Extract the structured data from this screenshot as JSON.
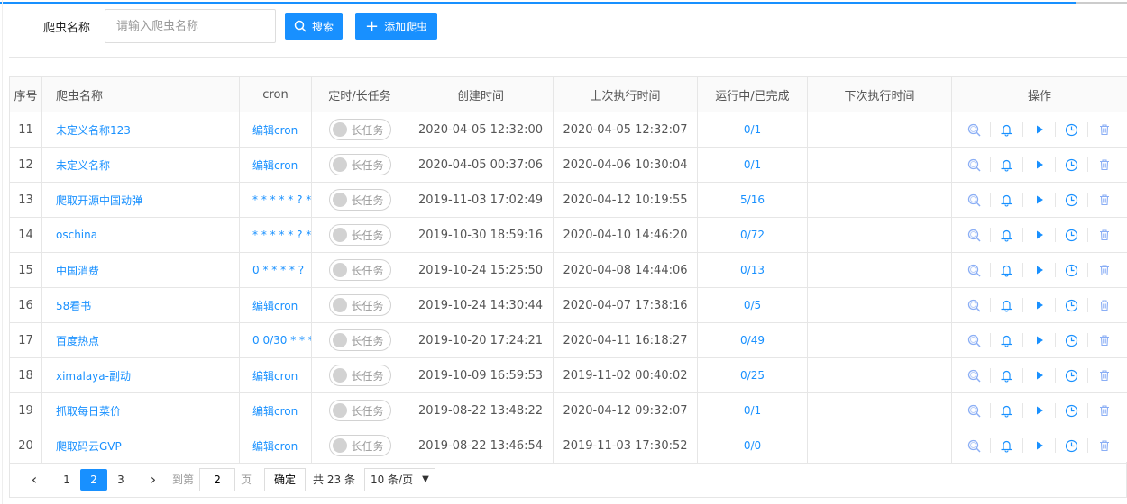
{
  "search": {
    "label": "爬虫名称",
    "placeholder": "请输入爬虫名称",
    "search_button": "搜索",
    "add_button": "添加爬虫"
  },
  "table": {
    "headers": [
      "序号",
      "爬虫名称",
      "cron",
      "定时/长任务",
      "创建时间",
      "上次执行时间",
      "运行中/已完成",
      "下次执行时间",
      "操作"
    ],
    "rows": [
      {
        "id": "11",
        "name": "未定义名称123",
        "cron": "编辑cron",
        "mode": "长任务",
        "created": "2020-04-05 12:32:00",
        "last": "2020-04-05 12:32:07",
        "status": "0/1",
        "next": ""
      },
      {
        "id": "12",
        "name": "未定义名称",
        "cron": "编辑cron",
        "mode": "长任务",
        "created": "2020-04-05 00:37:06",
        "last": "2020-04-06 10:30:04",
        "status": "0/1",
        "next": ""
      },
      {
        "id": "13",
        "name": "爬取开源中国动弹",
        "cron": "* * * * * ? * ...",
        "mode": "长任务",
        "created": "2019-11-03 17:02:49",
        "last": "2020-04-12 10:19:55",
        "status": "5/16",
        "next": ""
      },
      {
        "id": "14",
        "name": "oschina",
        "cron": "* * * * * ? * ...",
        "mode": "长任务",
        "created": "2019-10-30 18:59:16",
        "last": "2020-04-10 14:46:20",
        "status": "0/72",
        "next": ""
      },
      {
        "id": "15",
        "name": "中国消费",
        "cron": "0 * * * * ?",
        "mode": "长任务",
        "created": "2019-10-24 15:25:50",
        "last": "2020-04-08 14:44:06",
        "status": "0/13",
        "next": ""
      },
      {
        "id": "16",
        "name": "58看书",
        "cron": "编辑cron",
        "mode": "长任务",
        "created": "2019-10-24 14:30:44",
        "last": "2020-04-07 17:38:16",
        "status": "0/5",
        "next": ""
      },
      {
        "id": "17",
        "name": "百度热点",
        "cron": "0 0/30 * * * ?",
        "mode": "长任务",
        "created": "2019-10-20 17:24:21",
        "last": "2020-04-11 16:18:27",
        "status": "0/49",
        "next": ""
      },
      {
        "id": "18",
        "name": "ximalaya-副动",
        "cron": "编辑cron",
        "mode": "长任务",
        "created": "2019-10-09 16:59:53",
        "last": "2019-11-02 00:40:02",
        "status": "0/25",
        "next": ""
      },
      {
        "id": "19",
        "name": "抓取每日菜价",
        "cron": "编辑cron",
        "mode": "长任务",
        "created": "2019-08-22 13:48:22",
        "last": "2020-04-12 09:32:07",
        "status": "0/1",
        "next": ""
      },
      {
        "id": "20",
        "name": "爬取码云GVP",
        "cron": "编辑cron",
        "mode": "长任务",
        "created": "2019-08-22 13:46:54",
        "last": "2019-11-03 17:30:52",
        "status": "0/0",
        "next": ""
      }
    ],
    "row_actions": [
      "search-icon",
      "bell-icon",
      "play-icon",
      "clock-icon",
      "trash-icon"
    ]
  },
  "pager": {
    "pages": [
      "1",
      "2",
      "3"
    ],
    "current": "2",
    "goto_label": "到第",
    "goto_value": "2",
    "page_label": "页",
    "confirm": "确定",
    "total": "共 23 条",
    "page_size": "10 条/页"
  },
  "colors": {
    "accent": "#1890ff"
  }
}
